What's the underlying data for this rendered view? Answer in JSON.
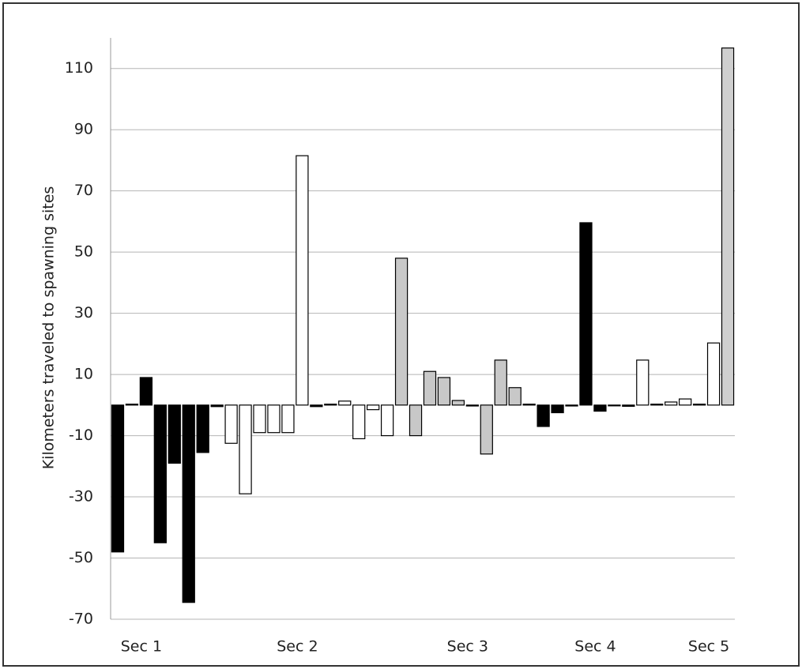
{
  "chart_data": {
    "type": "bar",
    "y_label": "Kilometers  traveled  to spawning  sites",
    "categories": [
      null,
      null,
      "Sec 1",
      null,
      null,
      null,
      null,
      null,
      null,
      null,
      null,
      null,
      null,
      "Sec 2",
      null,
      null,
      null,
      null,
      null,
      null,
      null,
      null,
      null,
      null,
      null,
      "Sec 3",
      null,
      null,
      null,
      null,
      null,
      null,
      null,
      null,
      "Sec 4",
      null,
      null,
      null,
      null,
      null,
      null,
      null,
      "Sec 5",
      null
    ],
    "values": [
      -48,
      0.3,
      9,
      -45,
      -19,
      -64.5,
      -15.5,
      -0.5,
      -12.5,
      -29,
      -9,
      -9,
      -9,
      81.5,
      -0.5,
      0.3,
      1.3,
      -11,
      -1.5,
      -10,
      48,
      -10,
      11,
      9,
      1.5,
      -0.3,
      -16,
      14.7,
      5.7,
      0.3,
      -7,
      -2.5,
      -0.3,
      59.6,
      -2,
      -0.2,
      -0.4,
      14.7,
      0.3,
      1,
      2,
      0.3,
      20.3,
      116.7
    ],
    "colors": [
      "#000000",
      "#000000",
      "#000000",
      "#000000",
      "#000000",
      "#000000",
      "#000000",
      "#000000",
      "#ffffff",
      "#ffffff",
      "#ffffff",
      "#ffffff",
      "#ffffff",
      "#ffffff",
      "#000000",
      "#000000",
      "#ffffff",
      "#ffffff",
      "#ffffff",
      "#ffffff",
      "#c8c8c8",
      "#c8c8c8",
      "#c8c8c8",
      "#c8c8c8",
      "#c8c8c8",
      "#000000",
      "#c8c8c8",
      "#c8c8c8",
      "#c8c8c8",
      "#000000",
      "#000000",
      "#000000",
      "#000000",
      "#000000",
      "#000000",
      "#000000",
      "#000000",
      "#ffffff",
      "#000000",
      "#ffffff",
      "#ffffff",
      "#000000",
      "#ffffff",
      "#cfcfcf"
    ],
    "ylim": [
      -70,
      120
    ],
    "yticks": [
      -70,
      -50,
      -30,
      -10,
      10,
      30,
      50,
      70,
      90,
      110
    ],
    "grid": true
  }
}
